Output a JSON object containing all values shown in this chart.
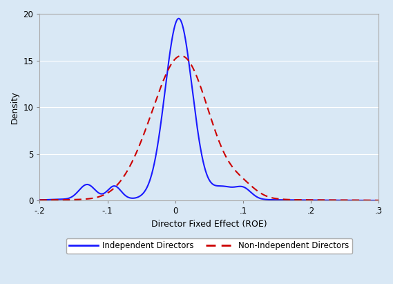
{
  "title": "",
  "xlabel": "Director Fixed Effect (ROE)",
  "ylabel": "Density",
  "xlim": [
    -0.2,
    0.3
  ],
  "ylim": [
    0,
    20
  ],
  "xticks": [
    -0.2,
    -0.1,
    0.0,
    0.1,
    0.2,
    0.3
  ],
  "xtick_labels": [
    "-.2",
    "-.1",
    "0",
    ".1",
    ".2",
    ".3"
  ],
  "yticks": [
    0,
    5,
    10,
    15,
    20
  ],
  "ytick_labels": [
    "0",
    "5",
    "10",
    "15",
    "20"
  ],
  "background_color": "#d9e8f5",
  "plot_bg_color": "#d9e8f5",
  "grid_color": "#ffffff",
  "indep_color": "#1a1aff",
  "nonindep_color": "#cc0000",
  "indep_label": "Independent Directors",
  "nonindep_label": "Non-Independent Directors",
  "indep_lw": 1.5,
  "nonindep_lw": 1.5,
  "indep_peak": 19.5,
  "nonindep_peak": 15.5,
  "seed": 42
}
